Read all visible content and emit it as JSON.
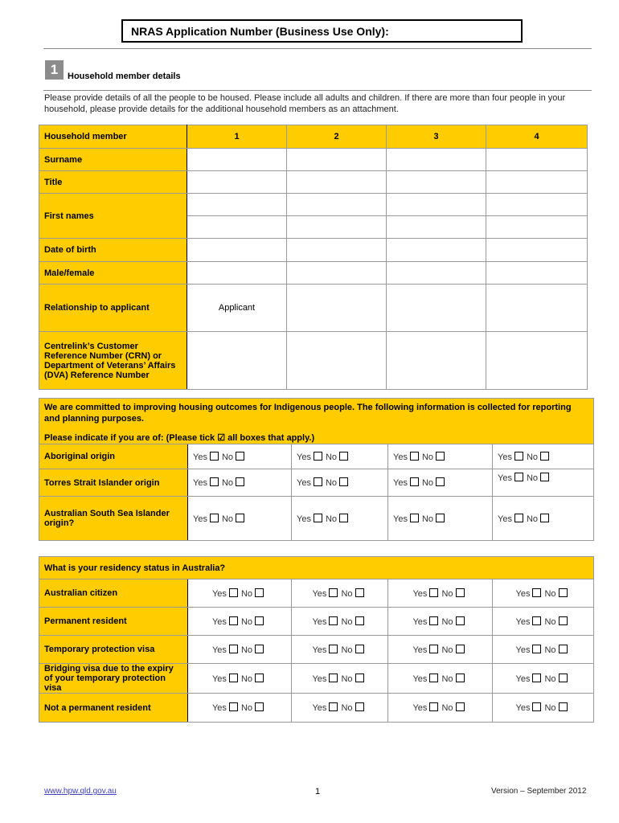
{
  "header": {
    "application_number_label": "NRAS Application Number (Business Use Only):"
  },
  "section": {
    "number": "1",
    "title": "Household member details",
    "intro": "Please provide details of all the people to be housed. Please include all adults and children. If there are more than four people in your household, please provide details for the additional household members as an attachment."
  },
  "household_table": {
    "header_label": "Household member",
    "columns": [
      "1",
      "2",
      "3",
      "4"
    ],
    "rows": [
      {
        "label": "Surname",
        "values": [
          "",
          "",
          "",
          ""
        ]
      },
      {
        "label": "Title",
        "values": [
          "",
          "",
          "",
          ""
        ]
      },
      {
        "label": "First names",
        "values": [
          "",
          "",
          "",
          ""
        ]
      },
      {
        "label": "Date of birth",
        "values": [
          "",
          "",
          "",
          ""
        ]
      },
      {
        "label": "Male/female",
        "values": [
          "",
          "",
          "",
          ""
        ]
      },
      {
        "label": "Relationship to applicant",
        "values": [
          "Applicant",
          "",
          "",
          ""
        ]
      },
      {
        "label": "Centrelink’s Customer Reference Number (CRN) or Department of Veterans’ Affairs (DVA) Reference Number",
        "values": [
          "",
          "",
          "",
          ""
        ]
      }
    ]
  },
  "options": {
    "yes": "Yes",
    "no": "No"
  },
  "indigenous_table": {
    "intro": "We are committed to improving housing outcomes for Indigenous people. The following information is collected for reporting and planning purposes.",
    "instruction": "Please indicate if you are of: (Please tick ☑ all boxes that apply.)",
    "rows": [
      "Aboriginal origin",
      "Torres Strait Islander origin",
      "Australian South Sea Islander origin?"
    ]
  },
  "residency_table": {
    "question": "What is your residency status in Australia?",
    "rows": [
      "Australian citizen",
      "Permanent resident",
      "Temporary protection visa",
      "Bridging visa due to the expiry of your temporary protection visa",
      "Not a permanent resident"
    ]
  },
  "footer": {
    "link": "www.hpw.qld.gov.au",
    "page": "1",
    "version": "Version – September 2012"
  },
  "colors": {
    "accent": "#ffcc00"
  }
}
